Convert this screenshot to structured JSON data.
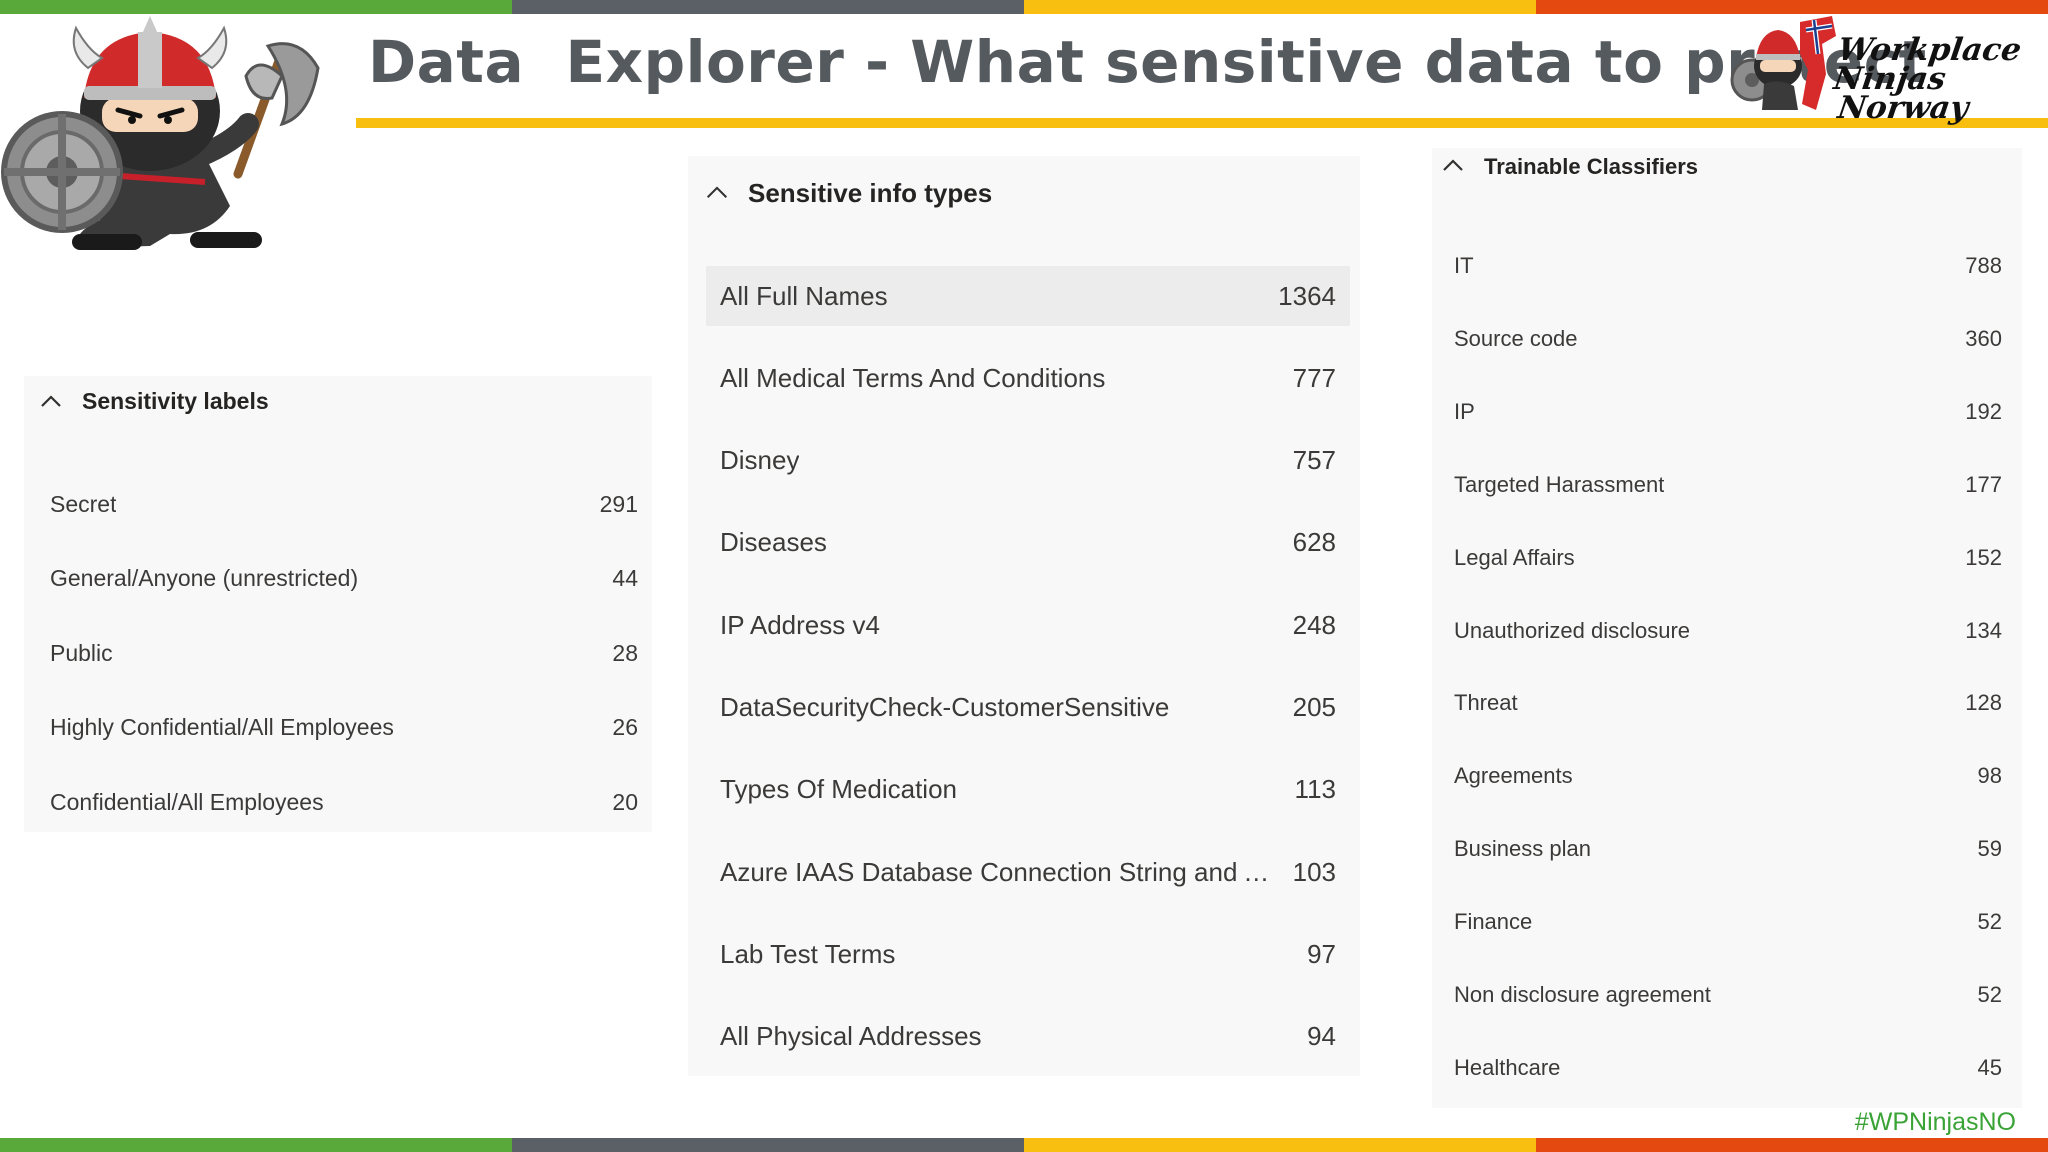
{
  "colors": {
    "green": "#58a83a",
    "gray": "#5b6066",
    "yellow": "#f8bf10",
    "red": "#e44a10",
    "title": "#555a5f",
    "hashtag": "#3aa335"
  },
  "header": {
    "title": "Data  Explorer - What sensitive data to protect",
    "logo_line1": "Workplace Ninjas",
    "logo_line2": "Norway"
  },
  "sensitivity_labels": {
    "header": "Sensitivity labels",
    "icon": "chevron-up-icon",
    "items": [
      {
        "label": "Secret",
        "count": "291"
      },
      {
        "label": "General/Anyone (unrestricted)",
        "count": "44"
      },
      {
        "label": "Public",
        "count": "28"
      },
      {
        "label": "Highly Confidential/All Employees",
        "count": "26"
      },
      {
        "label": "Confidential/All Employees",
        "count": "20"
      }
    ]
  },
  "sensitive_info_types": {
    "header": "Sensitive info types",
    "icon": "chevron-up-icon",
    "items": [
      {
        "label": "All Full Names",
        "count": "1364",
        "selected": true
      },
      {
        "label": "All Medical Terms And Conditions",
        "count": "777"
      },
      {
        "label": "Disney",
        "count": "757"
      },
      {
        "label": "Diseases",
        "count": "628"
      },
      {
        "label": "IP Address v4",
        "count": "248"
      },
      {
        "label": "DataSecurityCheck-CustomerSensitive",
        "count": "205"
      },
      {
        "label": "Types Of Medication",
        "count": "113"
      },
      {
        "label": "Azure IAAS Database Connection String and Azure...",
        "count": "103"
      },
      {
        "label": "Lab Test Terms",
        "count": "97"
      },
      {
        "label": "All Physical Addresses",
        "count": "94"
      }
    ]
  },
  "trainable_classifiers": {
    "header": "Trainable Classifiers",
    "icon": "chevron-up-icon",
    "items": [
      {
        "label": "IT",
        "count": "788"
      },
      {
        "label": "Source code",
        "count": "360"
      },
      {
        "label": "IP",
        "count": "192"
      },
      {
        "label": "Targeted Harassment",
        "count": "177"
      },
      {
        "label": "Legal Affairs",
        "count": "152"
      },
      {
        "label": "Unauthorized disclosure",
        "count": "134"
      },
      {
        "label": "Threat",
        "count": "128"
      },
      {
        "label": "Agreements",
        "count": "98"
      },
      {
        "label": "Business plan",
        "count": "59"
      },
      {
        "label": "Finance",
        "count": "52"
      },
      {
        "label": "Non disclosure agreement",
        "count": "52"
      },
      {
        "label": "Healthcare",
        "count": "45"
      }
    ]
  },
  "footer": {
    "hashtag": "#WPNinjasNO"
  }
}
